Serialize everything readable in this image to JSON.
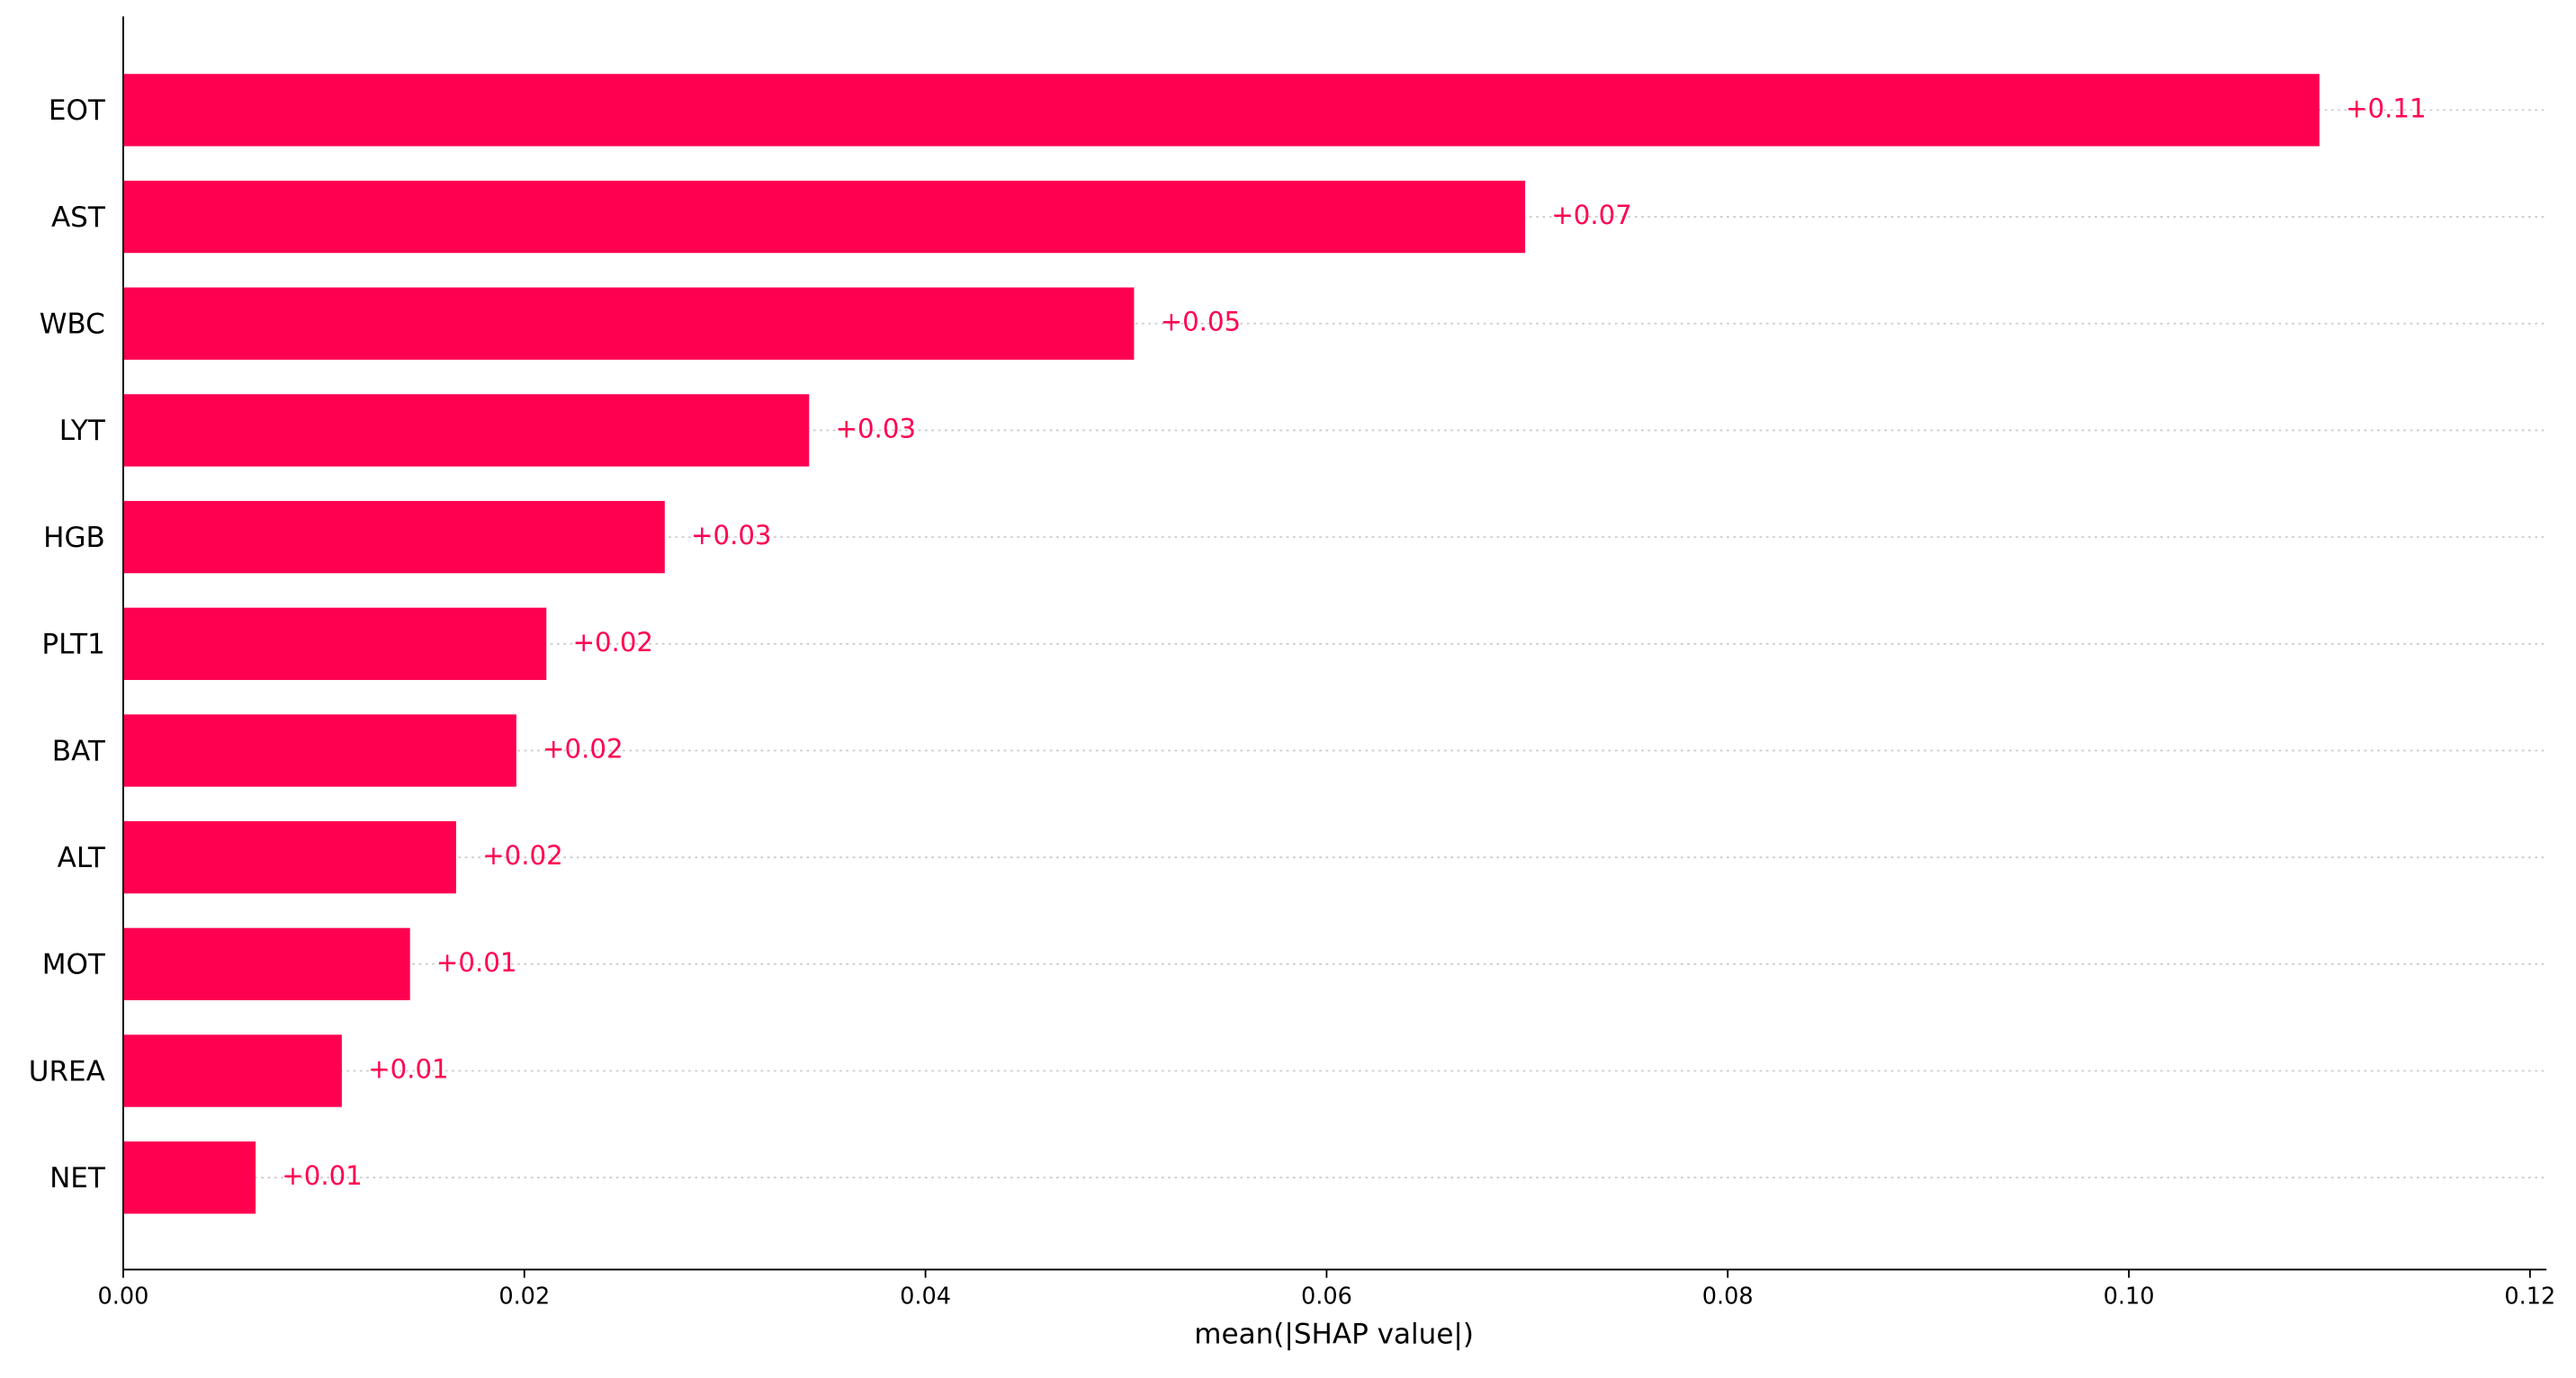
{
  "chart_data": {
    "type": "bar",
    "orientation": "horizontal",
    "categories": [
      "EOT",
      "AST",
      "WBC",
      "LYT",
      "HGB",
      "PLT1",
      "BAT",
      "ALT",
      "MOT",
      "UREA",
      "NET"
    ],
    "values": [
      0.1095,
      0.0699,
      0.0504,
      0.0342,
      0.027,
      0.0211,
      0.0196,
      0.0166,
      0.0143,
      0.0109,
      0.0066
    ],
    "value_labels": [
      "+0.11",
      "+0.07",
      "+0.05",
      "+0.03",
      "+0.03",
      "+0.02",
      "+0.02",
      "+0.02",
      "+0.01",
      "+0.01",
      "+0.01"
    ],
    "color": "#ff0051",
    "x_label": "mean(|SHAP value|)",
    "xlim": [
      0,
      0.12
    ],
    "xticks": [
      {
        "value": 0,
        "label": "0.00"
      },
      {
        "value": 0.02,
        "label": "0.02"
      },
      {
        "value": 0.04,
        "label": "0.04"
      },
      {
        "value": 0.06,
        "label": "0.06"
      },
      {
        "value": 0.08,
        "label": "0.08"
      },
      {
        "value": 0.1,
        "label": "0.10"
      },
      {
        "value": 0.12,
        "label": "0.12"
      }
    ],
    "grid": true
  }
}
